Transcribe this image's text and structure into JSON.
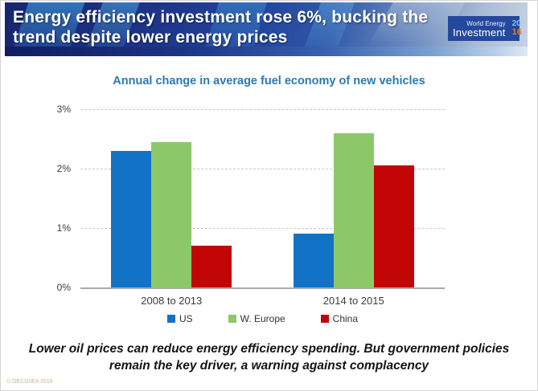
{
  "header": {
    "title_line1": "Energy efficiency investment rose 6%, bucking the",
    "title_line2": "trend despite lower energy prices",
    "logo": {
      "brand_line1": "World Energy",
      "brand_line2": "Investment",
      "year_top": "20",
      "year_bottom": "16",
      "bg_color": "#24489b",
      "year_top_color": "#8fc3e8",
      "year_bottom_color": "#e07b28"
    }
  },
  "chart_data": {
    "type": "bar",
    "title": "Annual change in average fuel economy of new vehicles",
    "title_color": "#2979b3",
    "categories": [
      "2008 to 2013",
      "2014 to 2015"
    ],
    "series": [
      {
        "name": "US",
        "color": "#1273c6",
        "values": [
          2.3,
          0.9
        ]
      },
      {
        "name": "W. Europe",
        "color": "#8dc868",
        "values": [
          2.45,
          2.6
        ]
      },
      {
        "name": "China",
        "color": "#c20606",
        "values": [
          0.7,
          2.05
        ]
      }
    ],
    "xlabel": "",
    "ylabel": "",
    "ylim": [
      0,
      3
    ],
    "yticks": [
      "3%",
      "2%",
      "1%",
      "0%"
    ],
    "grid": "horizontal dashed at 1%, 2%, 3%; solid baseline at 0%",
    "legend_position": "bottom"
  },
  "footer": {
    "message_line1": "Lower oil prices can reduce energy efficiency spending. But government policies",
    "message_line2": "remain the key driver, a warning against complacency",
    "copyright": "© OECD/IEA 2016"
  }
}
